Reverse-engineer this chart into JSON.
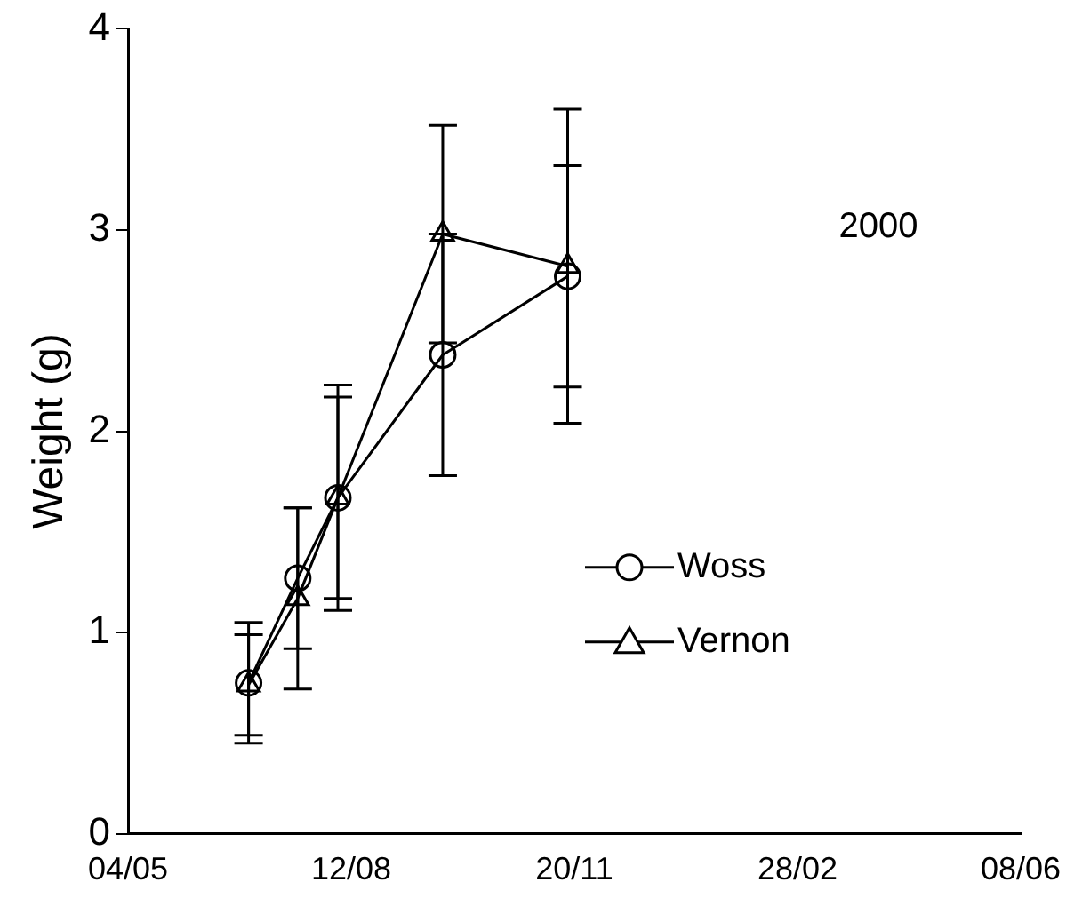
{
  "chart_data": {
    "type": "line",
    "ylabel": "Weight (g)",
    "annotations": [
      "2000"
    ],
    "x": [
      "2000-06-27",
      "2000-07-19",
      "2000-08-06",
      "2000-09-22",
      "2000-11-17"
    ],
    "series": [
      {
        "name": "Woss",
        "color": "#000000",
        "marker": "circle",
        "values": [
          0.75,
          1.27,
          1.67,
          2.38,
          2.77
        ],
        "errors": [
          0.3,
          0.35,
          0.56,
          0.6,
          0.55
        ]
      },
      {
        "name": "Vernon",
        "color": "#000000",
        "marker": "triangle",
        "values": [
          0.74,
          1.17,
          1.67,
          2.98,
          2.82
        ],
        "errors": [
          0.25,
          0.45,
          0.5,
          0.54,
          0.78
        ]
      }
    ],
    "xlim": [
      "2000-05-04",
      "2001-06-08"
    ],
    "xticks": [
      {
        "value": "2000-05-04",
        "label": "04/05"
      },
      {
        "value": "2000-08-12",
        "label": "12/08"
      },
      {
        "value": "2000-11-20",
        "label": "20/11"
      },
      {
        "value": "2001-02-28",
        "label": "28/02"
      },
      {
        "value": "2001-06-08",
        "label": "08/06"
      }
    ],
    "ylim": [
      0,
      4
    ],
    "yticks": [
      0,
      1,
      2,
      3,
      4
    ],
    "grid": false,
    "legend": "bottom right",
    "line_style": "solid"
  }
}
